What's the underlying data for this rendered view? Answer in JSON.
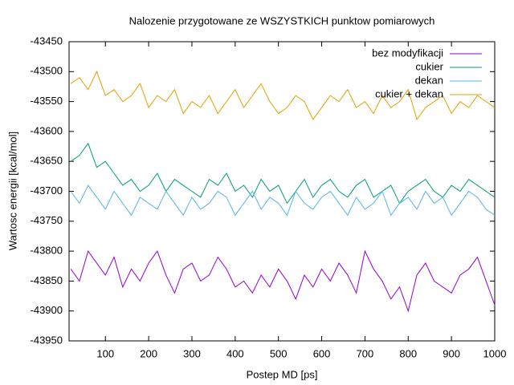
{
  "chart_data": {
    "type": "line",
    "title": "Nalozenie przygotowane ze WSZYSTKICH punktow pomiarowych",
    "xlabel": "Postep MD [ps]",
    "ylabel": "Wartosc energii [kcal/mol]",
    "x": [
      20,
      40,
      60,
      80,
      100,
      120,
      140,
      160,
      180,
      200,
      220,
      240,
      260,
      280,
      300,
      320,
      340,
      360,
      380,
      400,
      420,
      440,
      460,
      480,
      500,
      520,
      540,
      560,
      580,
      600,
      620,
      640,
      660,
      680,
      700,
      720,
      740,
      760,
      780,
      800,
      820,
      840,
      860,
      880,
      900,
      920,
      940,
      960,
      980,
      1000
    ],
    "xlim": [
      16,
      1000
    ],
    "xticks": [
      100,
      200,
      300,
      400,
      500,
      600,
      700,
      800,
      900,
      1000
    ],
    "ylim": [
      -43950,
      -43450
    ],
    "yticks": [
      -43950,
      -43900,
      -43850,
      -43800,
      -43750,
      -43700,
      -43650,
      -43600,
      -43550,
      -43500,
      -43450
    ],
    "legend": "top-right",
    "series": [
      {
        "name": "bez modyfikacji",
        "color": "#9400d3",
        "values": [
          -43830,
          -43850,
          -43800,
          -43820,
          -43840,
          -43810,
          -43860,
          -43830,
          -43850,
          -43820,
          -43800,
          -43840,
          -43870,
          -43830,
          -43820,
          -43850,
          -43840,
          -43810,
          -43830,
          -43860,
          -43850,
          -43870,
          -43840,
          -43860,
          -43830,
          -43850,
          -43880,
          -43840,
          -43860,
          -43830,
          -43850,
          -43820,
          -43840,
          -43870,
          -43800,
          -43830,
          -43850,
          -43880,
          -43860,
          -43900,
          -43840,
          -43820,
          -43850,
          -43860,
          -43870,
          -43840,
          -43830,
          -43810,
          -43850,
          -43890
        ]
      },
      {
        "name": "cukier",
        "color": "#009e73",
        "values": [
          -43650,
          -43640,
          -43620,
          -43660,
          -43650,
          -43670,
          -43690,
          -43680,
          -43700,
          -43690,
          -43670,
          -43700,
          -43680,
          -43690,
          -43700,
          -43710,
          -43680,
          -43690,
          -43670,
          -43700,
          -43690,
          -43710,
          -43680,
          -43700,
          -43690,
          -43720,
          -43700,
          -43680,
          -43710,
          -43690,
          -43680,
          -43700,
          -43710,
          -43690,
          -43680,
          -43710,
          -43700,
          -43690,
          -43720,
          -43700,
          -43690,
          -43680,
          -43700,
          -43710,
          -43690,
          -43700,
          -43680,
          -43690,
          -43700,
          -43710
        ]
      },
      {
        "name": "dekan",
        "color": "#56b4e9",
        "values": [
          -43700,
          -43720,
          -43690,
          -43710,
          -43730,
          -43700,
          -43720,
          -43740,
          -43710,
          -43720,
          -43730,
          -43700,
          -43720,
          -43740,
          -43710,
          -43730,
          -43720,
          -43700,
          -43710,
          -43740,
          -43720,
          -43700,
          -43730,
          -43710,
          -43720,
          -43740,
          -43700,
          -43720,
          -43730,
          -43710,
          -43700,
          -43720,
          -43740,
          -43710,
          -43730,
          -43720,
          -43700,
          -43740,
          -43720,
          -43710,
          -43730,
          -43700,
          -43720,
          -43710,
          -43740,
          -43720,
          -43700,
          -43710,
          -43730,
          -43740
        ]
      },
      {
        "name": "cukier + dekan",
        "color": "#e69f00",
        "values": [
          -43520,
          -43510,
          -43530,
          -43500,
          -43540,
          -43530,
          -43550,
          -43540,
          -43520,
          -43560,
          -43540,
          -43550,
          -43530,
          -43570,
          -43550,
          -43560,
          -43540,
          -43570,
          -43550,
          -43530,
          -43560,
          -43540,
          -43520,
          -43550,
          -43570,
          -43560,
          -43540,
          -43550,
          -43580,
          -43560,
          -43540,
          -43550,
          -43530,
          -43560,
          -43550,
          -43570,
          -43540,
          -43560,
          -43550,
          -43530,
          -43580,
          -43560,
          -43550,
          -43540,
          -43570,
          -43550,
          -43560,
          -43540,
          -43550,
          -43560
        ]
      }
    ]
  }
}
